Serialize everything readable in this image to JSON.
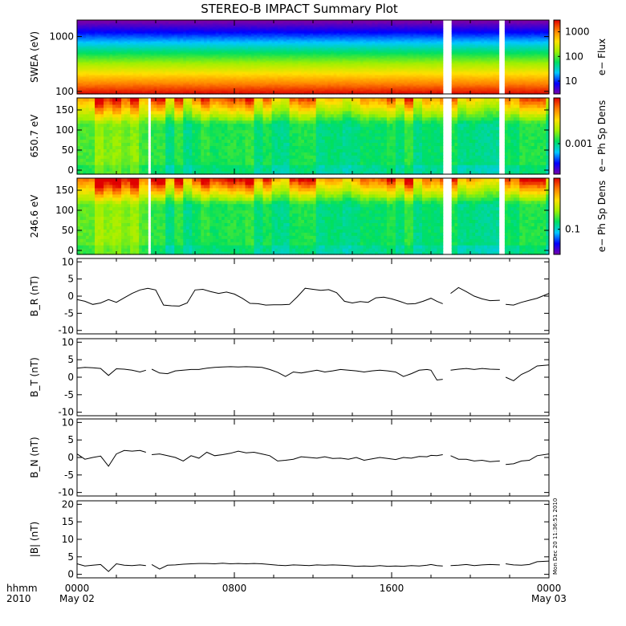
{
  "page": {
    "title": "STEREO-B IMPACT Summary Plot",
    "timestamp_label": "Mon Dec 20 11:36:51 2010"
  },
  "time_axis": {
    "row1_label": "hhmm",
    "row2_label": "2010",
    "ticks": [
      {
        "hour": 0,
        "label": "0000",
        "date": "May 02"
      },
      {
        "hour": 8,
        "label": "0800",
        "date": ""
      },
      {
        "hour": 16,
        "label": "1600",
        "date": ""
      },
      {
        "hour": 24,
        "label": "0000",
        "date": "May 03"
      }
    ],
    "range_hours": [
      0,
      24
    ]
  },
  "colors": {
    "spectrogram_scale": [
      "#7800aa",
      "#0000ff",
      "#00c8ff",
      "#00e060",
      "#a0f000",
      "#ffe000",
      "#ff8000",
      "#e00000"
    ],
    "data_gaps": "#ffffff",
    "line": "#000000"
  },
  "chart_data": [
    {
      "type": "heatmap",
      "name": "swea",
      "ylabel": "SWEA (eV)",
      "yscale": "log",
      "ylim": [
        90,
        2000
      ],
      "yticks": [
        {
          "v": 100,
          "label": "100"
        },
        {
          "v": 1000,
          "label": "1000"
        }
      ],
      "colorbar": {
        "label": "e− Flux",
        "scale": "log",
        "range": [
          3,
          3000
        ],
        "ticks": [
          {
            "v": 10,
            "label": "10"
          },
          {
            "v": 100,
            "label": "100"
          },
          {
            "v": 1000,
            "label": "1000"
          }
        ]
      },
      "data_intervals_hours": [
        [
          0,
          18.6
        ],
        [
          19.0,
          21.5
        ],
        [
          21.8,
          24
        ]
      ],
      "profile": "energy"
    },
    {
      "type": "heatmap",
      "name": "pad650",
      "ylabel": "650.7 eV",
      "ylim": [
        -10,
        180
      ],
      "yticks": [
        {
          "v": 0,
          "label": "0"
        },
        {
          "v": 50,
          "label": "50"
        },
        {
          "v": 100,
          "label": "100"
        },
        {
          "v": 150,
          "label": "150"
        }
      ],
      "colorbar": {
        "label": "e− Ph Sp Dens",
        "scale": "log",
        "ticks": [
          {
            "frac": 0.4,
            "label": "0.001"
          }
        ]
      },
      "data_intervals_hours": [
        [
          0,
          3.6
        ],
        [
          3.8,
          18.6
        ],
        [
          19.0,
          21.5
        ],
        [
          21.8,
          24
        ]
      ],
      "profile": "pad",
      "strength": 0.85
    },
    {
      "type": "heatmap",
      "name": "pad246",
      "ylabel": "246.6 eV",
      "ylim": [
        -10,
        180
      ],
      "yticks": [
        {
          "v": 0,
          "label": "0"
        },
        {
          "v": 50,
          "label": "50"
        },
        {
          "v": 100,
          "label": "100"
        },
        {
          "v": 150,
          "label": "150"
        }
      ],
      "colorbar": {
        "label": "e− Ph Sp Dens",
        "scale": "log",
        "ticks": [
          {
            "frac": 0.33,
            "label": "0.1"
          }
        ]
      },
      "data_intervals_hours": [
        [
          0,
          3.6
        ],
        [
          3.8,
          18.6
        ],
        [
          19.0,
          21.5
        ],
        [
          21.8,
          24
        ]
      ],
      "profile": "pad",
      "strength": 1.0
    },
    {
      "type": "line",
      "name": "br",
      "ylabel": "B_R (nT)",
      "ylim": [
        -11,
        11
      ],
      "yticks": [
        -10,
        -5,
        0,
        5,
        10
      ],
      "segments": [
        {
          "x": [
            0,
            0.4,
            0.8,
            1.2,
            1.6,
            2.0,
            2.4,
            2.8,
            3.2,
            3.6,
            4.0,
            4.4,
            4.8,
            5.2,
            5.6,
            6.0,
            6.4,
            6.8,
            7.2,
            7.6,
            8.0,
            8.4,
            8.8,
            9.2,
            9.6,
            10.0,
            10.4,
            10.8,
            11.2,
            11.6,
            12.0,
            12.4,
            12.8,
            13.2,
            13.6,
            14.0,
            14.4,
            14.8,
            15.2,
            15.6,
            16.0,
            16.4,
            16.8,
            17.2,
            17.6,
            18.0,
            18.3,
            18.6
          ],
          "y": [
            -1.0,
            -1.5,
            -2.4,
            -2.0,
            -1.0,
            -1.8,
            -0.5,
            0.8,
            1.8,
            2.3,
            1.8,
            -2.6,
            -2.8,
            -2.9,
            -2.0,
            1.8,
            2.0,
            1.3,
            0.8,
            1.2,
            0.6,
            -0.6,
            -2.1,
            -2.2,
            -2.6,
            -2.5,
            -2.5,
            -2.4,
            -0.2,
            2.3,
            2.0,
            1.7,
            1.9,
            1.0,
            -1.5,
            -2.0,
            -1.6,
            -1.8,
            -0.5,
            -0.3,
            -0.8,
            -1.5,
            -2.3,
            -2.2,
            -1.5,
            -0.6,
            -1.5,
            -2.2
          ]
        },
        {
          "x": [
            19.0,
            19.4,
            19.8,
            20.2,
            20.6,
            21.0,
            21.5
          ],
          "y": [
            0.8,
            2.5,
            1.3,
            0.0,
            -0.8,
            -1.3,
            -1.2
          ]
        },
        {
          "x": [
            21.8,
            22.2,
            22.6,
            23.0,
            23.4,
            24.0
          ],
          "y": [
            -2.4,
            -2.6,
            -1.8,
            -1.2,
            -0.6,
            0.8
          ]
        }
      ]
    },
    {
      "type": "line",
      "name": "bt",
      "ylabel": "B_T (nT)",
      "ylim": [
        -11,
        11
      ],
      "yticks": [
        -10,
        -5,
        0,
        5,
        10
      ],
      "segments": [
        {
          "x": [
            0,
            0.4,
            0.8,
            1.2,
            1.6,
            2.0,
            2.4,
            2.8,
            3.2,
            3.5
          ],
          "y": [
            2.6,
            2.8,
            2.7,
            2.5,
            0.5,
            2.4,
            2.3,
            2.0,
            1.5,
            2.0
          ]
        },
        {
          "x": [
            3.8,
            4.2,
            4.6,
            5.0,
            5.4,
            5.8,
            6.2,
            6.6,
            7.0,
            7.4,
            7.8,
            8.2,
            8.6,
            9.0,
            9.4,
            9.8,
            10.2,
            10.6,
            11.0,
            11.4,
            11.8,
            12.2,
            12.6,
            13.0,
            13.4,
            13.8,
            14.2,
            14.6,
            15.0,
            15.4,
            15.8,
            16.2,
            16.6,
            17.0,
            17.4,
            17.8,
            18.0,
            18.3,
            18.6
          ],
          "y": [
            2.3,
            1.2,
            1.0,
            1.8,
            2.0,
            2.2,
            2.2,
            2.6,
            2.8,
            2.9,
            3.0,
            2.9,
            3.0,
            2.9,
            2.8,
            2.2,
            1.4,
            0.2,
            1.5,
            1.2,
            1.6,
            2.0,
            1.5,
            1.8,
            2.2,
            2.0,
            1.8,
            1.5,
            1.8,
            2.0,
            1.8,
            1.5,
            0.2,
            1.0,
            2.0,
            2.2,
            2.0,
            -0.8,
            -0.6
          ]
        },
        {
          "x": [
            19.0,
            19.4,
            19.8,
            20.2,
            20.6,
            21.0,
            21.5
          ],
          "y": [
            2.0,
            2.3,
            2.5,
            2.2,
            2.5,
            2.3,
            2.2
          ]
        },
        {
          "x": [
            21.8,
            22.2,
            22.6,
            23.0,
            23.4,
            24.0
          ],
          "y": [
            0.0,
            -1.0,
            0.8,
            1.8,
            3.2,
            3.5
          ]
        }
      ]
    },
    {
      "type": "line",
      "name": "bn",
      "ylabel": "B_N (nT)",
      "ylim": [
        -11,
        11
      ],
      "yticks": [
        -10,
        -5,
        0,
        5,
        10
      ],
      "segments": [
        {
          "x": [
            0,
            0.4,
            0.8,
            1.2,
            1.6,
            2.0,
            2.4,
            2.8,
            3.2,
            3.5
          ],
          "y": [
            1.0,
            -0.5,
            0.0,
            0.4,
            -2.5,
            1.0,
            2.0,
            1.8,
            2.0,
            1.5
          ]
        },
        {
          "x": [
            3.8,
            4.2,
            4.6,
            5.0,
            5.4,
            5.8,
            6.2,
            6.6,
            7.0,
            7.4,
            7.8,
            8.2,
            8.6,
            9.0,
            9.4,
            9.8,
            10.2,
            10.6,
            11.0,
            11.4,
            11.8,
            12.2,
            12.6,
            13.0,
            13.4,
            13.8,
            14.2,
            14.6,
            15.0,
            15.4,
            15.8,
            16.2,
            16.6,
            17.0,
            17.4,
            17.8,
            18.0,
            18.3,
            18.6
          ],
          "y": [
            0.8,
            1.0,
            0.5,
            0.0,
            -1.0,
            0.5,
            -0.2,
            1.5,
            0.5,
            0.8,
            1.2,
            1.8,
            1.3,
            1.5,
            1.0,
            0.5,
            -1.0,
            -0.8,
            -0.5,
            0.2,
            0.0,
            -0.2,
            0.2,
            -0.3,
            -0.2,
            -0.5,
            0.0,
            -0.8,
            -0.4,
            0.0,
            -0.3,
            -0.6,
            0.0,
            -0.2,
            0.3,
            0.2,
            0.6,
            0.5,
            0.8
          ]
        },
        {
          "x": [
            19.0,
            19.4,
            19.8,
            20.2,
            20.6,
            21.0,
            21.5
          ],
          "y": [
            0.5,
            -0.5,
            -0.5,
            -1.0,
            -0.8,
            -1.2,
            -1.0
          ]
        },
        {
          "x": [
            21.8,
            22.2,
            22.6,
            23.0,
            23.4,
            24.0
          ],
          "y": [
            -2.0,
            -1.8,
            -1.0,
            -0.8,
            0.5,
            1.0
          ]
        }
      ]
    },
    {
      "type": "line",
      "name": "bmag",
      "ylabel": "|B| (nT)",
      "ylim": [
        -1,
        21
      ],
      "yticks": [
        0,
        5,
        10,
        15,
        20
      ],
      "segments": [
        {
          "x": [
            0,
            0.4,
            0.8,
            1.2,
            1.6,
            2.0,
            2.4,
            2.8,
            3.2,
            3.5
          ],
          "y": [
            3.0,
            2.4,
            2.6,
            2.8,
            0.8,
            3.0,
            2.6,
            2.5,
            2.7,
            2.5
          ]
        },
        {
          "x": [
            3.8,
            4.2,
            4.6,
            5.0,
            5.4,
            5.8,
            6.2,
            6.6,
            7.0,
            7.4,
            7.8,
            8.2,
            8.6,
            9.0,
            9.4,
            9.8,
            10.2,
            10.6,
            11.0,
            11.4,
            11.8,
            12.2,
            12.6,
            13.0,
            13.4,
            13.8,
            14.2,
            14.6,
            15.0,
            15.4,
            15.8,
            16.2,
            16.6,
            17.0,
            17.4,
            17.8,
            18.0,
            18.3,
            18.6
          ],
          "y": [
            2.8,
            1.5,
            2.6,
            2.7,
            2.9,
            3.0,
            3.1,
            3.1,
            3.0,
            3.2,
            3.0,
            3.1,
            3.0,
            3.1,
            3.0,
            2.8,
            2.6,
            2.5,
            2.7,
            2.6,
            2.5,
            2.7,
            2.6,
            2.7,
            2.6,
            2.5,
            2.3,
            2.4,
            2.3,
            2.5,
            2.3,
            2.4,
            2.3,
            2.5,
            2.4,
            2.6,
            2.8,
            2.5,
            2.4
          ]
        },
        {
          "x": [
            19.0,
            19.4,
            19.8,
            20.2,
            20.6,
            21.0,
            21.5
          ],
          "y": [
            2.5,
            2.6,
            2.8,
            2.5,
            2.7,
            2.8,
            2.7
          ]
        },
        {
          "x": [
            21.8,
            22.2,
            22.6,
            23.0,
            23.4,
            24.0
          ],
          "y": [
            3.0,
            2.7,
            2.6,
            2.8,
            3.6,
            3.8
          ]
        }
      ]
    }
  ]
}
